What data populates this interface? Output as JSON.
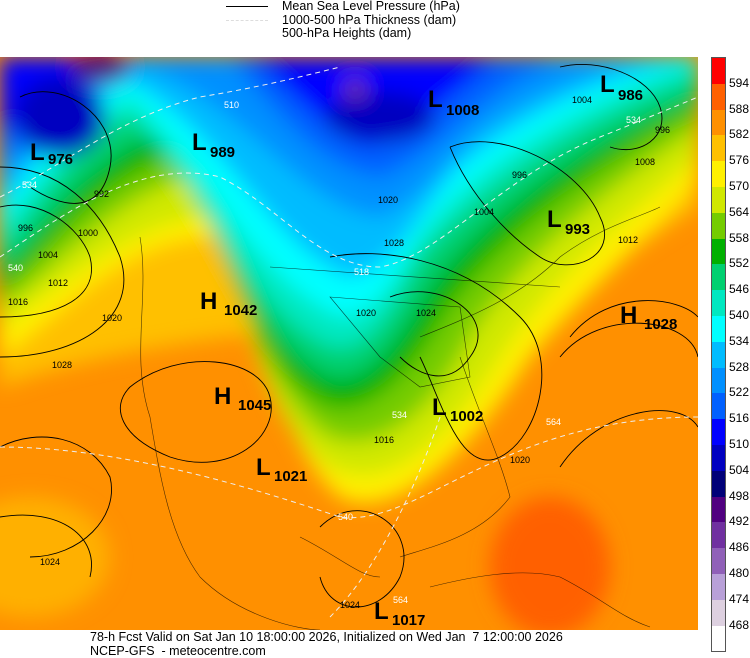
{
  "legend": {
    "items": [
      {
        "label": "Mean Sea Level Pressure (hPa)",
        "line": "solid"
      },
      {
        "label": "1000-500 hPa Thickness (dam)",
        "line": "dashed"
      },
      {
        "label": "500-hPa Heights (dam)",
        "line": "filled"
      }
    ]
  },
  "colorbar": {
    "labels": [
      "594",
      "588",
      "582",
      "576",
      "570",
      "564",
      "558",
      "552",
      "546",
      "540",
      "534",
      "528",
      "522",
      "516",
      "510",
      "504",
      "498",
      "492",
      "486",
      "480",
      "474",
      "468"
    ],
    "colors": [
      "#ff0000",
      "#ff6000",
      "#ff9000",
      "#ffc000",
      "#fff000",
      "#d0e800",
      "#74cc00",
      "#00b000",
      "#00d070",
      "#00e8c0",
      "#00ffff",
      "#00bcff",
      "#0090ff",
      "#0060ff",
      "#0000ff",
      "#0000c0",
      "#000078",
      "#500080",
      "#7030a0",
      "#9060b8",
      "#b8a0d8",
      "#ddd0e0",
      "#ffffff"
    ]
  },
  "centers": [
    {
      "type": "L",
      "value": "976"
    },
    {
      "type": "L",
      "value": "989"
    },
    {
      "type": "L",
      "value": "1008"
    },
    {
      "type": "L",
      "value": "986"
    },
    {
      "type": "L",
      "value": "993"
    },
    {
      "type": "H",
      "value": "1042"
    },
    {
      "type": "H",
      "value": "1028"
    },
    {
      "type": "H",
      "value": "1045"
    },
    {
      "type": "L",
      "value": "1002"
    },
    {
      "type": "L",
      "value": "1021"
    },
    {
      "type": "L",
      "value": "1017"
    }
  ],
  "contour_labels": [
    "534",
    "996",
    "1000",
    "992",
    "1004",
    "540",
    "1012",
    "1016",
    "1020",
    "1028",
    "1024",
    "510",
    "1020",
    "1028",
    "518",
    "1020",
    "1024",
    "1016",
    "534",
    "540",
    "564",
    "1020",
    "564",
    "1024",
    "1004",
    "534",
    "996",
    "1008",
    "996",
    "1004",
    "1012"
  ],
  "footer": {
    "line1": "78-h Fcst Valid on Sat Jan 10 18:00:00 2026, Initialized on Wed Jan  7 12:00:00 2026",
    "line2": "NCEP-GFS  - meteocentre.com"
  }
}
